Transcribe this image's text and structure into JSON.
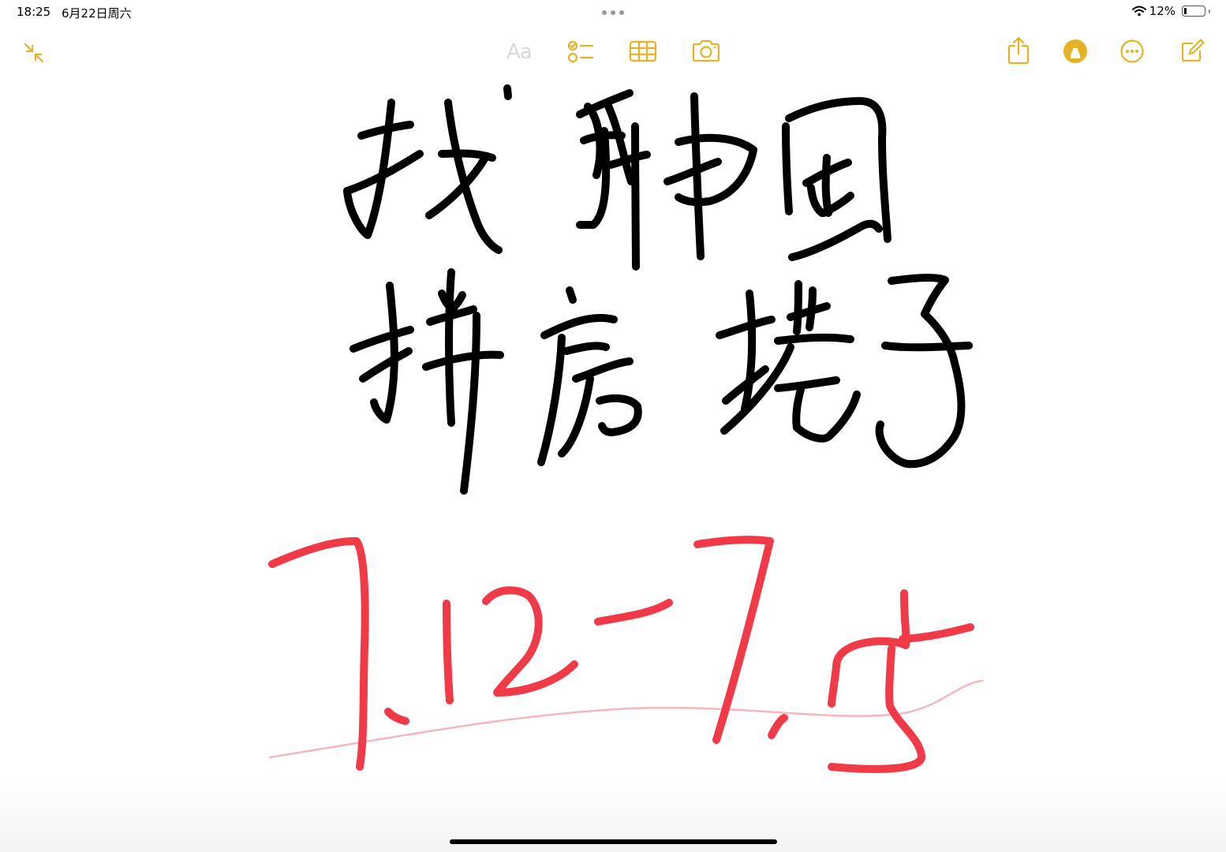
{
  "status_bar": {
    "time": "18:25",
    "date": "6月22日周六",
    "battery_percent": "12%",
    "battery_level": 0.12
  },
  "toolbar": {
    "accent_color": "#E5B227",
    "format_label": "Aa",
    "icons": {
      "collapse": "collapse-arrows-icon",
      "checklist": "checklist-icon",
      "table": "table-icon",
      "camera": "camera-icon",
      "share": "share-icon",
      "markup": "markup-pen-icon",
      "more": "more-ellipsis-icon",
      "compose": "compose-icon"
    }
  },
  "note": {
    "handwriting_black": "找韩国拼房搭子",
    "handwriting_red": "7.12-7.15",
    "ink_colors": {
      "black": "#000000",
      "red": "#F03A47",
      "pink_line": "#F4B6BC"
    }
  }
}
